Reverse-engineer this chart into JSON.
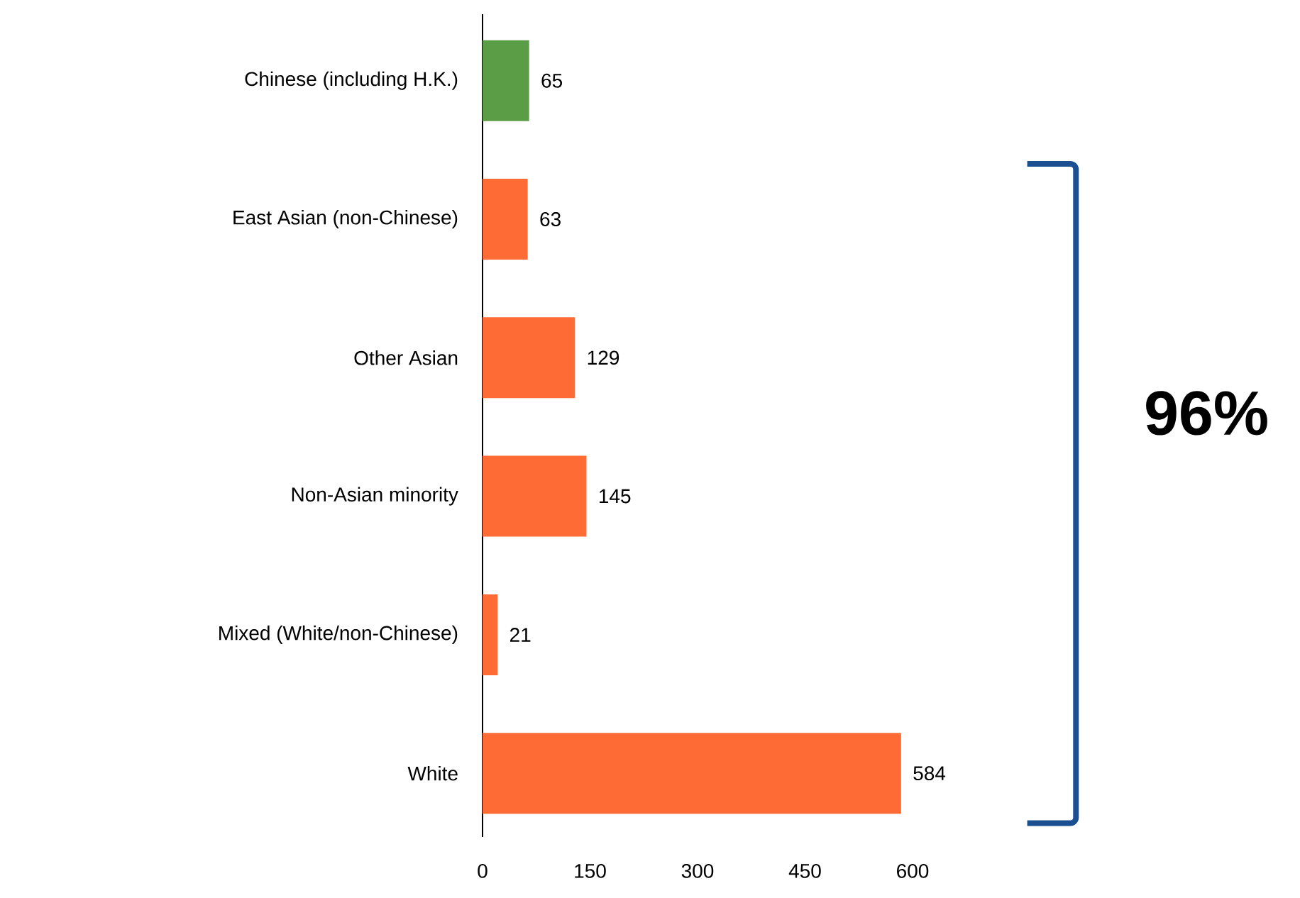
{
  "chart_data": {
    "type": "bar",
    "orientation": "horizontal",
    "categories": [
      "Chinese (including H.K.)",
      "East Asian (non-Chinese)",
      "Other Asian",
      "Non-Asian minority",
      "Mixed (White/non-Chinese)",
      "White"
    ],
    "values": [
      65,
      63,
      129,
      145,
      21,
      584
    ],
    "colors": [
      "#5b9d46",
      "#ff6b35",
      "#ff6b35",
      "#ff6b35",
      "#ff6b35",
      "#ff6b35"
    ],
    "xlim": [
      0,
      600
    ],
    "xticks": [
      0,
      150,
      300,
      450,
      600
    ],
    "data_labels": true,
    "grid": false,
    "annotations": [
      "96%"
    ]
  }
}
